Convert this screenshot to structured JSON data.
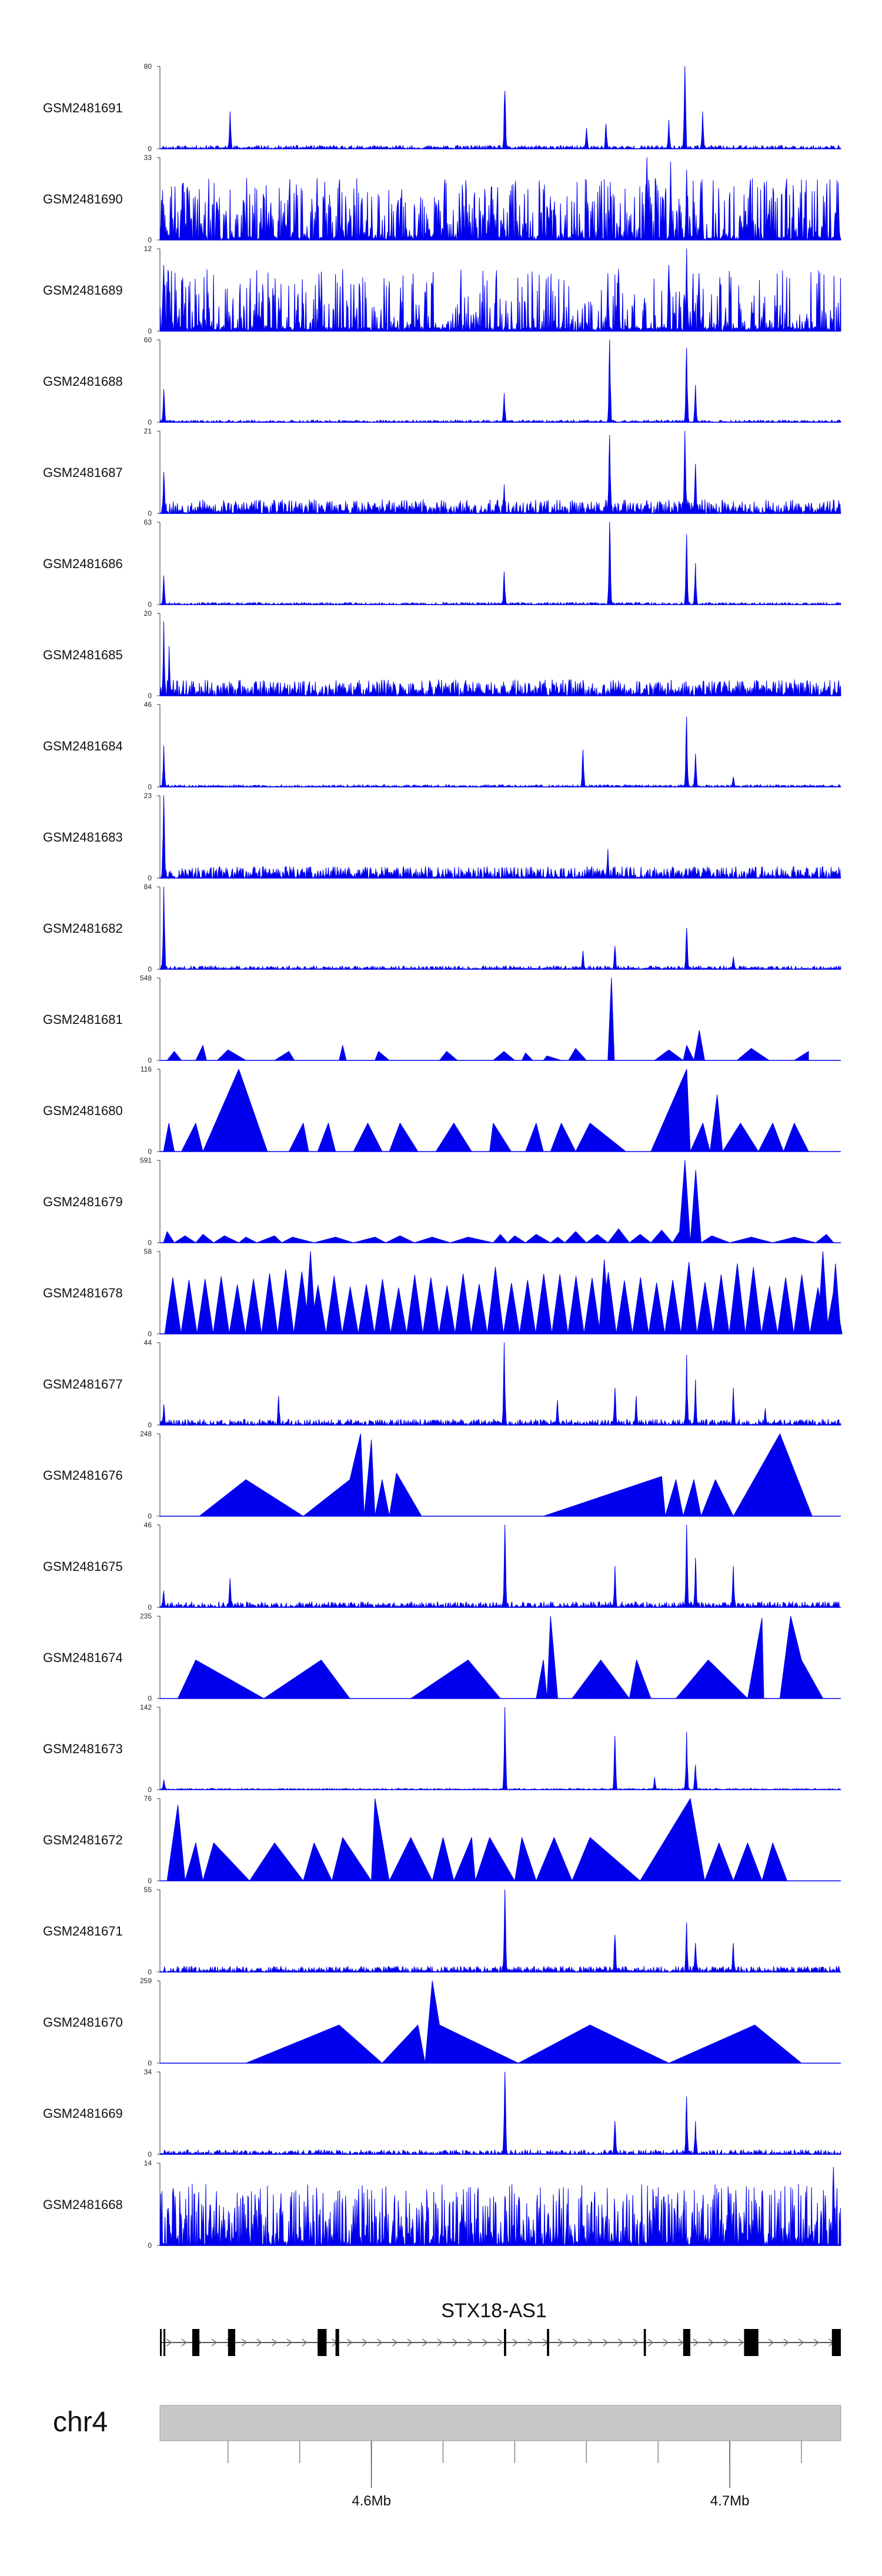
{
  "chart_data": {
    "type": "area",
    "title": "",
    "xlabel": "",
    "ylabel": "",
    "region": {
      "chromosome": "chr4",
      "start": 4541000,
      "end": 4731000,
      "axis_ticks": [
        4560000,
        4580000,
        4600000,
        4620000,
        4640000,
        4660000,
        4680000,
        4700000,
        4720000
      ],
      "axis_labels": [
        {
          "value": 4600000,
          "label": "4.6Mb"
        },
        {
          "value": 4700000,
          "label": "4.7Mb"
        }
      ]
    },
    "colors": {
      "signal": "#0000ee",
      "ideogram": "#c8c8c8",
      "gene": "#000000"
    },
    "tracks": [
      {
        "name": "GSM2481691",
        "ymax": 80,
        "ymin": 0,
        "style": "bars",
        "noise": 0.03,
        "seed": 11,
        "peaks": [
          [
            4560500,
            0.45
          ],
          [
            4637200,
            0.7
          ],
          [
            4660000,
            0.25
          ],
          [
            4665500,
            0.3
          ],
          [
            4683000,
            0.35
          ],
          [
            4687500,
            1.0
          ],
          [
            4692500,
            0.45
          ]
        ]
      },
      {
        "name": "GSM2481690",
        "ymax": 33,
        "ymin": 0,
        "style": "spiky",
        "density": 0.75,
        "seed": 23,
        "peaks": [
          [
            4677000,
            1.0
          ],
          [
            4683500,
            0.95
          ],
          [
            4688000,
            0.85
          ],
          [
            4692000,
            0.7
          ]
        ]
      },
      {
        "name": "GSM2481689",
        "ymax": 12,
        "ymin": 0,
        "style": "spiky",
        "density": 0.55,
        "seed": 37,
        "peaks": [
          [
            4542000,
            0.8
          ],
          [
            4666000,
            0.7
          ],
          [
            4669000,
            0.75
          ],
          [
            4683000,
            0.8
          ],
          [
            4688000,
            1.0
          ],
          [
            4691500,
            0.7
          ]
        ]
      },
      {
        "name": "GSM2481688",
        "ymax": 60,
        "ymin": 0,
        "style": "bars",
        "noise": 0.02,
        "seed": 41,
        "peaks": [
          [
            4542000,
            0.4
          ],
          [
            4637000,
            0.35
          ],
          [
            4666500,
            1.0
          ],
          [
            4688000,
            0.9
          ],
          [
            4690500,
            0.45
          ]
        ]
      },
      {
        "name": "GSM2481687",
        "ymax": 21,
        "ymin": 0,
        "style": "bars",
        "noise": 0.12,
        "seed": 53,
        "peaks": [
          [
            4542000,
            0.5
          ],
          [
            4637000,
            0.35
          ],
          [
            4666500,
            0.95
          ],
          [
            4687500,
            1.0
          ],
          [
            4690500,
            0.6
          ]
        ]
      },
      {
        "name": "GSM2481686",
        "ymax": 63,
        "ymin": 0,
        "style": "bars",
        "noise": 0.02,
        "seed": 67,
        "peaks": [
          [
            4542000,
            0.35
          ],
          [
            4637000,
            0.4
          ],
          [
            4666500,
            1.0
          ],
          [
            4688000,
            0.85
          ],
          [
            4690500,
            0.5
          ]
        ]
      },
      {
        "name": "GSM2481685",
        "ymax": 20,
        "ymin": 0,
        "style": "bars",
        "noise": 0.14,
        "seed": 71,
        "peaks": [
          [
            4542000,
            0.9
          ],
          [
            4543500,
            0.6
          ]
        ]
      },
      {
        "name": "GSM2481684",
        "ymax": 46,
        "ymin": 0,
        "style": "bars",
        "noise": 0.02,
        "seed": 83,
        "peaks": [
          [
            4542000,
            0.5
          ],
          [
            4659000,
            0.45
          ],
          [
            4688000,
            0.85
          ],
          [
            4690500,
            0.4
          ],
          [
            4701000,
            0.12
          ]
        ]
      },
      {
        "name": "GSM2481683",
        "ymax": 23,
        "ymin": 0,
        "style": "bars",
        "noise": 0.1,
        "seed": 97,
        "peaks": [
          [
            4542000,
            1.0
          ],
          [
            4666000,
            0.35
          ]
        ]
      },
      {
        "name": "GSM2481682",
        "ymax": 84,
        "ymin": 0,
        "style": "bars",
        "noise": 0.03,
        "seed": 101,
        "peaks": [
          [
            4542000,
            1.0
          ],
          [
            4659000,
            0.22
          ],
          [
            4668000,
            0.28
          ],
          [
            4688000,
            0.5
          ],
          [
            4701000,
            0.15
          ]
        ]
      },
      {
        "name": "GSM2481681",
        "ymax": 548,
        "ymin": 0,
        "style": "sparse",
        "x": [
          4543000,
          4545000,
          4547000,
          4551000,
          4553000,
          4554000,
          4557000,
          4560000,
          4565000,
          4573000,
          4577000,
          4578500,
          4580000,
          4591000,
          4592000,
          4593000,
          4598000,
          4601000,
          4602000,
          4605000,
          4614000,
          4619000,
          4621000,
          4624000,
          4626000,
          4629000,
          4634000,
          4637000,
          4640000,
          4642000,
          4643000,
          4645000,
          4647000,
          4648000,
          4649000,
          4653000,
          4655000,
          4657000,
          4660000,
          4666000,
          4667000,
          4667800,
          4672000,
          4679000,
          4683000,
          4687000,
          4688000,
          4690000,
          4691500,
          4693000,
          4697000,
          4702000,
          4706000,
          4711000,
          4718000,
          4722000
        ],
        "y": [
          0,
          60,
          0,
          0,
          100,
          0,
          0,
          70,
          0,
          0,
          60,
          0,
          0,
          0,
          100,
          0,
          0,
          0,
          60,
          0,
          0,
          0,
          60,
          0,
          0,
          0,
          0,
          60,
          0,
          0,
          50,
          0,
          0,
          0,
          30,
          0,
          0,
          80,
          0,
          0,
          548,
          0,
          0,
          0,
          70,
          0,
          100,
          0,
          200,
          0,
          0,
          0,
          80,
          0,
          0,
          60
        ]
      },
      {
        "name": "GSM2481680",
        "ymax": 116,
        "ymin": 0,
        "style": "sparse",
        "x": [
          4542000,
          4543500,
          4545000,
          4547000,
          4551000,
          4553000,
          4563000,
          4571000,
          4577000,
          4581000,
          4582500,
          4585000,
          4588000,
          4590000,
          4595000,
          4599000,
          4603000,
          4605000,
          4608000,
          4613000,
          4618000,
          4623000,
          4628000,
          4633000,
          4634000,
          4639000,
          4643000,
          4646000,
          4648000,
          4650000,
          4653000,
          4657000,
          4661000,
          4671000,
          4678000,
          4688000,
          4689000,
          4692500,
          4694500,
          4696500,
          4698000,
          4703000,
          4708000,
          4712000,
          4715000,
          4718000,
          4722000
        ],
        "y": [
          0,
          40,
          0,
          0,
          40,
          0,
          116,
          0,
          0,
          40,
          0,
          0,
          40,
          0,
          0,
          40,
          0,
          0,
          40,
          0,
          0,
          40,
          0,
          0,
          40,
          0,
          0,
          40,
          0,
          0,
          40,
          0,
          40,
          0,
          0,
          116,
          0,
          40,
          0,
          80,
          0,
          40,
          0,
          40,
          0,
          40,
          0
        ]
      },
      {
        "name": "GSM2481679",
        "ymax": 591,
        "ymin": 0,
        "style": "sparse",
        "x": [
          4542000,
          4543000,
          4545000,
          4548000,
          4551000,
          4553000,
          4556000,
          4559000,
          4563000,
          4565000,
          4568000,
          4573000,
          4575000,
          4578000,
          4584000,
          4590000,
          4595000,
          4601000,
          4604000,
          4608000,
          4612000,
          4617000,
          4622000,
          4627000,
          4634000,
          4636000,
          4638000,
          4640000,
          4643000,
          4646000,
          4650000,
          4652000,
          4654000,
          4657000,
          4660000,
          4663000,
          4666000,
          4669000,
          4672000,
          4675000,
          4678000,
          4681000,
          4684000,
          4686000,
          4687500,
          4689000,
          4690500,
          4692000,
          4695000,
          4700000,
          4706000,
          4712000,
          4718000,
          4724000,
          4727000,
          4729000,
          4731000
        ],
        "y": [
          0,
          80,
          0,
          50,
          0,
          60,
          0,
          50,
          0,
          40,
          0,
          50,
          0,
          40,
          0,
          40,
          0,
          40,
          0,
          50,
          0,
          40,
          0,
          40,
          0,
          60,
          0,
          50,
          0,
          60,
          0,
          40,
          0,
          80,
          0,
          60,
          0,
          100,
          0,
          60,
          0,
          90,
          0,
          80,
          591,
          0,
          520,
          0,
          50,
          0,
          40,
          0,
          40,
          0,
          60,
          0,
          0
        ]
      },
      {
        "name": "GSM2481678",
        "ymax": 58,
        "ymin": 0,
        "style": "peaks",
        "seed": 131,
        "step": 4500,
        "jitter": 0.35,
        "tall": [
          [
            4583000,
            1.0
          ],
          [
            4665000,
            0.9
          ],
          [
            4726000,
            1.0
          ],
          [
            4729500,
            0.85
          ]
        ]
      },
      {
        "name": "GSM2481677",
        "ymax": 44,
        "ymin": 0,
        "style": "bars",
        "noise": 0.05,
        "seed": 149,
        "peaks": [
          [
            4542000,
            0.25
          ],
          [
            4574000,
            0.35
          ],
          [
            4637000,
            1.0
          ],
          [
            4652000,
            0.3
          ],
          [
            4668000,
            0.45
          ],
          [
            4674000,
            0.35
          ],
          [
            4688000,
            0.85
          ],
          [
            4690500,
            0.55
          ],
          [
            4701000,
            0.45
          ],
          [
            4710000,
            0.2
          ]
        ]
      },
      {
        "name": "GSM2481676",
        "ymax": 248,
        "ymin": 0,
        "style": "sparse",
        "x": [
          4552000,
          4565000,
          4581000,
          4594000,
          4597000,
          4598000,
          4600000,
          4601000,
          4603000,
          4605000,
          4607000,
          4614000,
          4648000,
          4681000,
          4682000,
          4685000,
          4687000,
          4690000,
          4692000,
          4696000,
          4701000,
          4714000,
          4723000
        ],
        "y": [
          0,
          110,
          0,
          110,
          248,
          0,
          230,
          0,
          110,
          0,
          130,
          0,
          0,
          120,
          0,
          110,
          0,
          110,
          0,
          110,
          0,
          248,
          0
        ]
      },
      {
        "name": "GSM2481675",
        "ymax": 46,
        "ymin": 0,
        "style": "bars",
        "noise": 0.05,
        "seed": 167,
        "peaks": [
          [
            4542000,
            0.2
          ],
          [
            4560500,
            0.35
          ],
          [
            4637200,
            1.0
          ],
          [
            4668000,
            0.5
          ],
          [
            4688000,
            1.0
          ],
          [
            4690500,
            0.6
          ],
          [
            4701000,
            0.5
          ]
        ]
      },
      {
        "name": "GSM2481674",
        "ymax": 235,
        "ymin": 0,
        "style": "sparse",
        "x": [
          4546000,
          4551000,
          4570000,
          4586000,
          4594000,
          4611000,
          4627000,
          4636000,
          4637000,
          4646000,
          4648000,
          4649000,
          4650000,
          4652000,
          4656000,
          4664000,
          4672000,
          4674000,
          4678000,
          4685000,
          4694000,
          4705000,
          4709000,
          4709500,
          4714000,
          4717000,
          4720000,
          4726000
        ],
        "y": [
          0,
          110,
          0,
          110,
          0,
          0,
          110,
          0,
          0,
          0,
          110,
          0,
          235,
          0,
          0,
          110,
          0,
          110,
          0,
          0,
          110,
          0,
          230,
          0,
          0,
          235,
          110,
          0
        ]
      },
      {
        "name": "GSM2481673",
        "ymax": 142,
        "ymin": 0,
        "style": "bars",
        "noise": 0.012,
        "seed": 181,
        "peaks": [
          [
            4542000,
            0.12
          ],
          [
            4637200,
            1.0
          ],
          [
            4668000,
            0.65
          ],
          [
            4679000,
            0.15
          ],
          [
            4688000,
            0.7
          ],
          [
            4690500,
            0.3
          ]
        ]
      },
      {
        "name": "GSM2481672",
        "ymax": 76,
        "ymin": 0,
        "style": "sparse",
        "x": [
          4543000,
          4546000,
          4548000,
          4551000,
          4553000,
          4556000,
          4566000,
          4573000,
          4581000,
          4584000,
          4589000,
          4592000,
          4600000,
          4601000,
          4605000,
          4611000,
          4617000,
          4620000,
          4623000,
          4628000,
          4629000,
          4633000,
          4640000,
          4642000,
          4646000,
          4651000,
          4656000,
          4661000,
          4675000,
          4689000,
          4693000,
          4697000,
          4701000,
          4705000,
          4709000,
          4712000,
          4716000,
          4724000
        ],
        "y": [
          0,
          70,
          0,
          35,
          0,
          35,
          0,
          35,
          0,
          35,
          0,
          40,
          0,
          76,
          0,
          40,
          0,
          40,
          0,
          40,
          0,
          40,
          0,
          40,
          0,
          40,
          0,
          40,
          0,
          76,
          0,
          35,
          0,
          35,
          0,
          35,
          0,
          0
        ]
      },
      {
        "name": "GSM2481671",
        "ymax": 55,
        "ymin": 0,
        "style": "bars",
        "noise": 0.05,
        "seed": 199,
        "peaks": [
          [
            4637200,
            1.0
          ],
          [
            4668000,
            0.45
          ],
          [
            4688000,
            0.6
          ],
          [
            4690500,
            0.35
          ],
          [
            4701000,
            0.35
          ]
        ]
      },
      {
        "name": "GSM2481670",
        "ymax": 259,
        "ymin": 0,
        "style": "sparse",
        "x": [
          4565000,
          4591000,
          4603000,
          4613000,
          4615000,
          4617000,
          4619000,
          4641000,
          4661000,
          4683000,
          4707000,
          4720000
        ],
        "y": [
          0,
          120,
          0,
          120,
          0,
          259,
          120,
          0,
          120,
          0,
          120,
          0
        ]
      },
      {
        "name": "GSM2481669",
        "ymax": 34,
        "ymin": 0,
        "style": "bars",
        "noise": 0.04,
        "seed": 211,
        "peaks": [
          [
            4637200,
            1.0
          ],
          [
            4668000,
            0.4
          ],
          [
            4688000,
            0.7
          ],
          [
            4690500,
            0.4
          ]
        ]
      },
      {
        "name": "GSM2481668",
        "ymax": 14,
        "ymin": 0,
        "style": "spiky",
        "density": 0.9,
        "seed": 223,
        "peaks": [
          [
            4729000,
            0.95
          ]
        ]
      }
    ],
    "gene": {
      "name": "STX18-AS1",
      "start": 4541000,
      "end": 4731000,
      "exons": [
        [
          4541000,
          4541500
        ],
        [
          4542000,
          4542500
        ],
        [
          4550000,
          4552000
        ],
        [
          4560000,
          4562000
        ],
        [
          4585000,
          4587500
        ],
        [
          4590000,
          4591000
        ],
        [
          4637000,
          4637600
        ],
        [
          4649000,
          4649600
        ],
        [
          4676000,
          4676600
        ],
        [
          4687000,
          4689000
        ],
        [
          4704000,
          4708000
        ],
        [
          4728500,
          4731000
        ]
      ]
    },
    "ideogram": {
      "label": "chr4"
    }
  }
}
